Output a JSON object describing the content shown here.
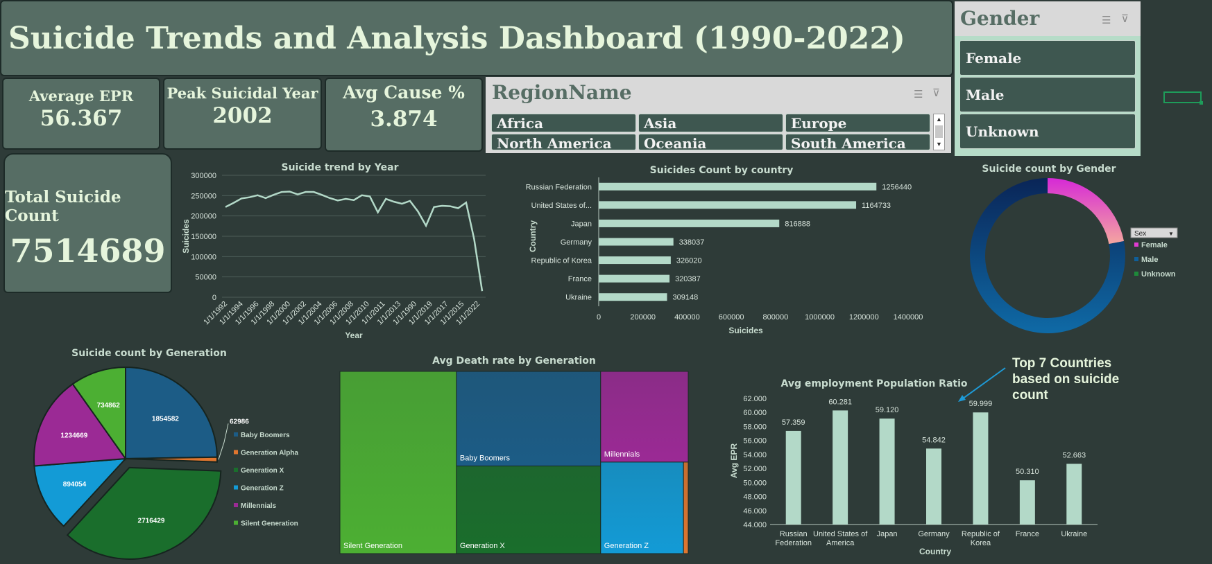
{
  "header": {
    "title": "Suicide Trends and Analysis Dashboard (1990-2022)"
  },
  "kpis": {
    "avg_epr_label": "Average EPR",
    "avg_epr_value": "56.367",
    "peak_year_label": "Peak Suicidal Year",
    "peak_year_value": "2002",
    "avg_cause_label": "Avg Cause %",
    "avg_cause_value": "3.874",
    "total_label": "Total Suicide Count",
    "total_value": "7514689"
  },
  "region_slicer": {
    "title": "RegionName",
    "items": [
      "Africa",
      "Asia",
      "Europe",
      "North America",
      "Oceania",
      "South America"
    ]
  },
  "gender_slicer": {
    "title": "Gender",
    "items": [
      "Female",
      "Male",
      "Unknown"
    ]
  },
  "annotation": {
    "text": "Top 7 Countries based on suicide count",
    "lines": [
      "Top 7 Countries",
      "based on suicide",
      "count"
    ]
  },
  "colors": {
    "bar": "#b3d9c8",
    "line": "#b3d9c8",
    "baby_boomers": "#1c5c86",
    "generation_alpha": "#e0762f",
    "generation_x": "#1a6e2c",
    "generation_z": "#139bd6",
    "millennials": "#9b2a95",
    "silent_generation": "#4caf33",
    "female": "#e13bd2",
    "male": "#0f5f9a"
  },
  "chart_data": [
    {
      "type": "line",
      "title": "Suicide trend by Year",
      "xlabel": "Year",
      "ylabel": "Suicides",
      "ylim": [
        0,
        300000
      ],
      "yticks": [
        0,
        50000,
        100000,
        150000,
        200000,
        250000,
        300000
      ],
      "xtick_labels": [
        "1/1/1992",
        "1/1/1994",
        "1/1/1996",
        "1/1/1998",
        "1/1/2000",
        "1/1/2002",
        "1/1/2004",
        "1/1/2006",
        "1/1/2008",
        "1/1/2010",
        "1/1/2011",
        "1/1/2013",
        "1/1/1990",
        "1/1/2019",
        "1/1/2017",
        "1/1/2015",
        "1/1/2022"
      ],
      "series": [
        {
          "values": [
            222000,
            232000,
            243000,
            246000,
            251000,
            244000,
            252000,
            259000,
            260000,
            253000,
            259000,
            259000,
            252000,
            244000,
            238000,
            242000,
            239000,
            251000,
            248000,
            209000,
            242000,
            235000,
            230000,
            237000,
            211000,
            176000,
            222000,
            225000,
            224000,
            219000,
            233000,
            143000,
            15000
          ]
        }
      ]
    },
    {
      "type": "bar",
      "orientation": "horizontal",
      "title": "Suicides Count by country",
      "xlabel": "Suicides",
      "ylabel": "Country",
      "xlim": [
        0,
        1400000
      ],
      "xticks": [
        0,
        200000,
        400000,
        600000,
        800000,
        1000000,
        1200000,
        1400000
      ],
      "categories": [
        "Russian Federation",
        "United States of...",
        "Japan",
        "Germany",
        "Republic of Korea",
        "France",
        "Ukraine"
      ],
      "values": [
        1256440,
        1164733,
        816888,
        338037,
        326020,
        320387,
        309148
      ]
    },
    {
      "type": "pie",
      "variant": "donut",
      "title": "Suicide count by Gender",
      "legend_title": "Sex",
      "labels": [
        "Female",
        "Male",
        "Unknown"
      ],
      "values": [
        22,
        78,
        0
      ],
      "colors": [
        "#e13bd2",
        "#0f5f9a",
        "#1e8a3a"
      ]
    },
    {
      "type": "pie",
      "title": "Suicide count by Generation",
      "labels": [
        "Baby Boomers",
        "Generation Alpha",
        "Generation X",
        "Generation Z",
        "Millennials",
        "Silent Generation"
      ],
      "values": [
        1854582,
        62986,
        2716429,
        894054,
        1234669,
        734862
      ],
      "colors": [
        "#1c5c86",
        "#e0762f",
        "#1a6e2c",
        "#139bd6",
        "#9b2a95",
        "#4caf33"
      ]
    },
    {
      "type": "treemap",
      "title": "Avg Death rate by Generation",
      "labels": [
        "Silent Generation",
        "Baby Boomers",
        "Generation X",
        "Millennials",
        "Generation Z",
        "Generation Alpha"
      ],
      "values": [
        29.4,
        18.9,
        17.5,
        11.0,
        10.5,
        0.6
      ],
      "colors": [
        "#4caf33",
        "#1c5c86",
        "#1a6e2c",
        "#9b2a95",
        "#139bd6",
        "#e0762f"
      ]
    },
    {
      "type": "bar",
      "title": "Avg employment Population Ratio",
      "xlabel": "Country",
      "ylabel": "Avg EPR",
      "ylim": [
        44,
        62
      ],
      "yticks": [
        44,
        46,
        48,
        50,
        52,
        54,
        56,
        58,
        60,
        62
      ],
      "categories": [
        "Russian Federation",
        "United States of America",
        "Japan",
        "Germany",
        "Republic of Korea",
        "France",
        "Ukraine"
      ],
      "category_lines": [
        [
          "Russian",
          "Federation"
        ],
        [
          "United States of",
          "America"
        ],
        [
          "Japan"
        ],
        [
          "Germany"
        ],
        [
          "Republic of",
          "Korea"
        ],
        [
          "France"
        ],
        [
          "Ukraine"
        ]
      ],
      "values": [
        57.359,
        60.281,
        59.12,
        54.842,
        59.999,
        50.31,
        52.663
      ],
      "value_labels": [
        "57.359",
        "60.281",
        "59.120",
        "54.842",
        "59.999",
        "50.310",
        "52.663"
      ]
    }
  ]
}
